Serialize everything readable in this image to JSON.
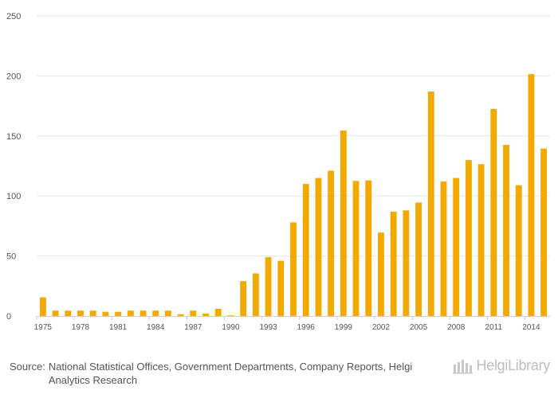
{
  "chart_data": {
    "type": "bar",
    "title": "",
    "xlabel": "",
    "ylabel": "",
    "color": "#f4a900",
    "ylim": [
      0,
      250
    ],
    "yticks": [
      0,
      50,
      100,
      150,
      200,
      250
    ],
    "categories": [
      "1975",
      "1976",
      "1977",
      "1978",
      "1979",
      "1980",
      "1981",
      "1982",
      "1983",
      "1984",
      "1985",
      "1986",
      "1987",
      "1988",
      "1989",
      "1990",
      "1991",
      "1992",
      "1993",
      "1994",
      "1995",
      "1996",
      "1997",
      "1998",
      "1999",
      "2000",
      "2001",
      "2002",
      "2003",
      "2004",
      "2005",
      "2006",
      "2007",
      "2008",
      "2009",
      "2010",
      "2011",
      "2012",
      "2013",
      "2014",
      "2015"
    ],
    "values": [
      15.5,
      4.5,
      4.5,
      4.5,
      4.5,
      3.5,
      3.5,
      4.5,
      4.5,
      4.5,
      4.5,
      1.5,
      4.5,
      2.0,
      6.0,
      0.5,
      29,
      35.5,
      49,
      46,
      78,
      110,
      115,
      121,
      154.5,
      112.5,
      113,
      69.5,
      87,
      88,
      94.5,
      187,
      112,
      115,
      130,
      126.5,
      172.5,
      142.5,
      109,
      201.5,
      139.5
    ],
    "xtick_labels": [
      "1975",
      "1978",
      "1981",
      "1984",
      "1987",
      "1990",
      "1993",
      "1996",
      "1999",
      "2002",
      "2005",
      "2008",
      "2011",
      "2014"
    ]
  },
  "footer": {
    "source_label": "Source:",
    "source_text": "National Statistical Offices, Government Departments, Company Reports, Helgi Analytics Research"
  },
  "brand": {
    "name": "HelgiLibrary"
  }
}
